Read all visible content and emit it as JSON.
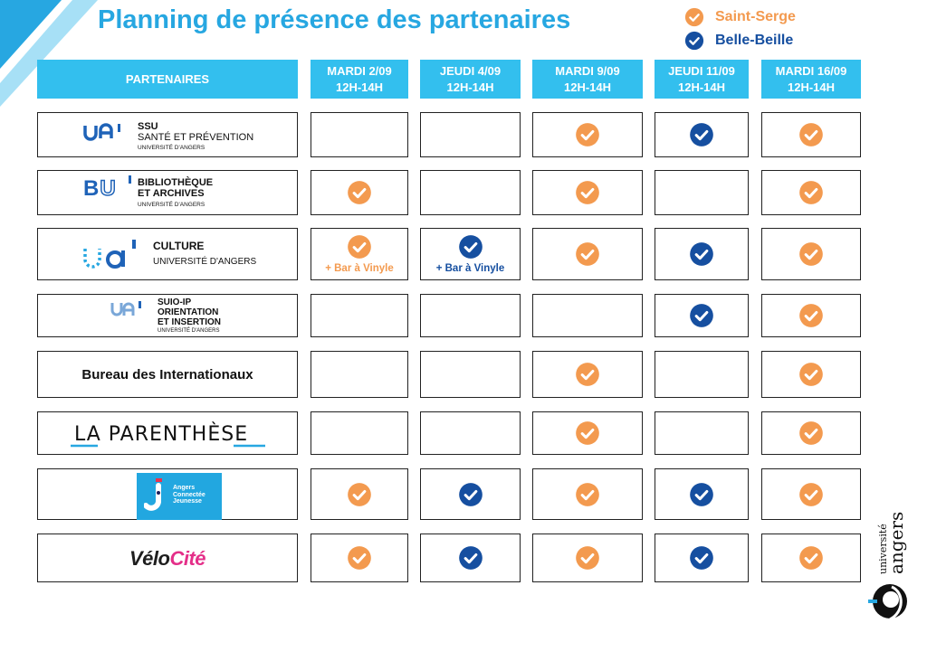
{
  "title": "Planning de présence des partenaires",
  "legend": [
    {
      "label": "Saint-Serge",
      "color": "#f39a4f"
    },
    {
      "label": "Belle-Beille",
      "color": "#164fa0"
    }
  ],
  "columns": {
    "partners_header": "PARTENAIRES",
    "days": [
      {
        "day": "MARDI 2/09",
        "time": "12H-14H"
      },
      {
        "day": "JEUDI 4/09",
        "time": "12H-14H"
      },
      {
        "day": "MARDI 9/09",
        "time": "12H-14H"
      },
      {
        "day": "JEUDI 11/09",
        "time": "12H-14H"
      },
      {
        "day": "MARDI 16/09",
        "time": "12H-14H"
      }
    ]
  },
  "partners": [
    {
      "logo_mark": "UA",
      "lines": [
        "SSU",
        "SANTÉ ET PRÉVENTION",
        "UNIVERSITÉ D'ANGERS"
      ],
      "presence": [
        "",
        "",
        "orange",
        "blue",
        "orange"
      ],
      "notes": [
        "",
        "",
        "",
        "",
        ""
      ]
    },
    {
      "logo_mark": "BU",
      "lines": [
        "BIBLIOTHÈQUE",
        "ET ARCHIVES",
        "UNIVERSITÉ D'ANGERS"
      ],
      "presence": [
        "orange",
        "",
        "orange",
        "",
        "orange"
      ],
      "notes": [
        "",
        "",
        "",
        "",
        ""
      ]
    },
    {
      "logo_mark": "ua",
      "lines": [
        "CULTURE",
        "UNIVERSITÉ D'ANGERS"
      ],
      "presence": [
        "orange",
        "blue",
        "orange",
        "blue",
        "orange"
      ],
      "notes": [
        "+ Bar à Vinyle",
        "+ Bar à Vinyle",
        "",
        "",
        ""
      ]
    },
    {
      "logo_mark": "UA",
      "lines": [
        "SUIO-IP",
        "ORIENTATION",
        "ET INSERTION",
        "UNIVERSITÉ D'ANGERS"
      ],
      "presence": [
        "",
        "",
        "",
        "blue",
        "orange"
      ],
      "notes": [
        "",
        "",
        "",
        "",
        ""
      ]
    },
    {
      "name": "Bureau des Internationaux",
      "presence": [
        "",
        "",
        "orange",
        "",
        "orange"
      ],
      "notes": [
        "",
        "",
        "",
        "",
        ""
      ]
    },
    {
      "name": "LA PARENTHÈSE",
      "presence": [
        "",
        "",
        "orange",
        "",
        "orange"
      ],
      "notes": [
        "",
        "",
        "",
        "",
        ""
      ]
    },
    {
      "logo_text": "Angers\nConnectée\nJeunesse",
      "presence": [
        "orange",
        "blue",
        "orange",
        "blue",
        "orange"
      ],
      "notes": [
        "",
        "",
        "",
        "",
        ""
      ]
    },
    {
      "name_a": "Vélo",
      "name_b": "Cité",
      "presence": [
        "orange",
        "blue",
        "orange",
        "blue",
        "orange"
      ],
      "notes": [
        "",
        "",
        "",
        "",
        ""
      ]
    }
  ],
  "footer_logo": {
    "line1": "université",
    "line2": "angers"
  }
}
